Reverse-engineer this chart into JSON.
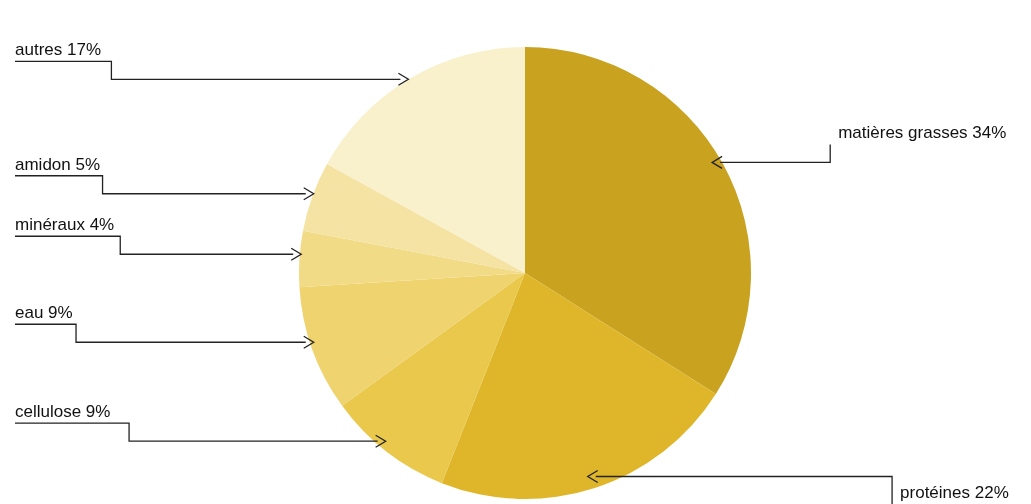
{
  "chart_data": {
    "type": "pie",
    "categories": [
      "matières grasses",
      "protéines",
      "cellulose",
      "eau",
      "minéraux",
      "amidon",
      "autres"
    ],
    "values": [
      34,
      22,
      9,
      9,
      4,
      5,
      17
    ],
    "value_labels": [
      "34%",
      "22%",
      "9%",
      "9%",
      "4%",
      "5%",
      "17%"
    ],
    "colors": [
      "#c9a220",
      "#dfb62a",
      "#e9c84c",
      "#efd36e",
      "#f2db86",
      "#f5e3a4",
      "#f9f0cc"
    ]
  }
}
